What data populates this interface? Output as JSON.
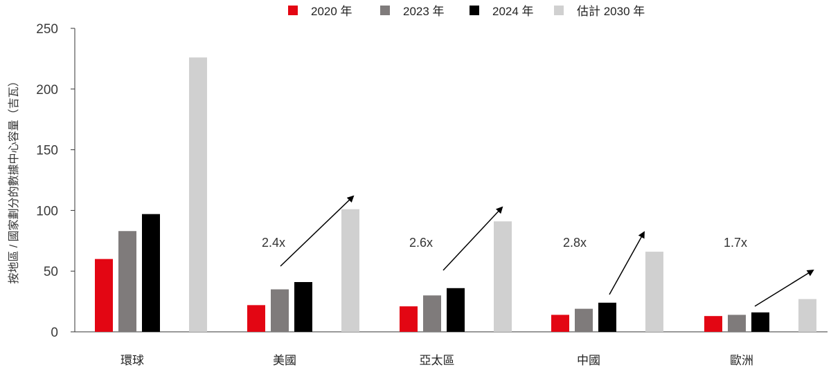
{
  "chart_data": {
    "type": "bar",
    "title": "",
    "xlabel": "",
    "ylabel": "按地區 / 國家劃分的數據中心容量（吉瓦）",
    "ylim": [
      0,
      250
    ],
    "yticks": [
      0,
      50,
      100,
      150,
      200,
      250
    ],
    "categories": [
      "環球",
      "美國",
      "亞太區",
      "中國",
      "歐洲"
    ],
    "series": [
      {
        "name": "2020 年",
        "color": "#e30613",
        "values": [
          60,
          22,
          21,
          14,
          13
        ]
      },
      {
        "name": "2023 年",
        "color": "#7f7b7b",
        "values": [
          83,
          35,
          30,
          19,
          14
        ]
      },
      {
        "name": "2024 年",
        "color": "#000000",
        "values": [
          97,
          41,
          36,
          24,
          16
        ]
      },
      {
        "name": "估計 2030 年",
        "color": "#d0d0d0",
        "values": [
          226,
          101,
          91,
          66,
          27
        ]
      }
    ],
    "legend_position": "top-center",
    "grid": false,
    "annotations": [
      {
        "category": "美國",
        "text": "2.4x"
      },
      {
        "category": "亞太區",
        "text": "2.6x"
      },
      {
        "category": "中國",
        "text": "2.8x"
      },
      {
        "category": "歐洲",
        "text": "1.7x"
      }
    ]
  }
}
